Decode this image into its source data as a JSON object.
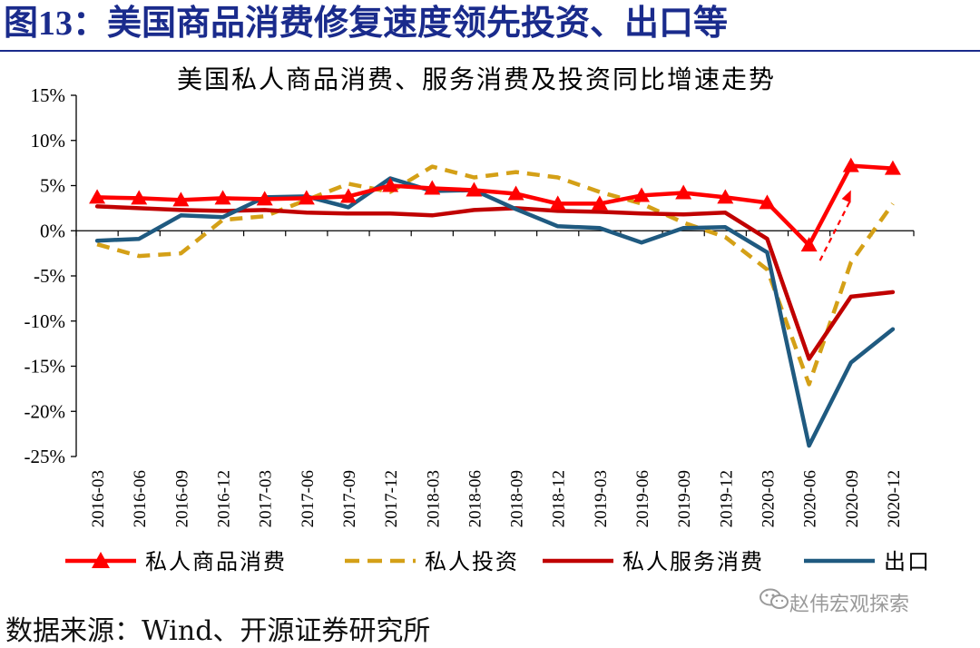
{
  "figure": {
    "label": "图13",
    "sep": "：",
    "heading": "美国商品消费修复速度领先投资、出口等"
  },
  "chart_data": {
    "type": "line",
    "title": "美国私人商品消费、服务消费及投资同比增速走势",
    "categories": [
      "2016-03",
      "2016-06",
      "2016-09",
      "2016-12",
      "2017-03",
      "2017-06",
      "2017-09",
      "2017-12",
      "2018-03",
      "2018-06",
      "2018-09",
      "2018-12",
      "2019-03",
      "2019-06",
      "2019-09",
      "2019-12",
      "2020-03",
      "2020-06",
      "2020-09",
      "2020-12"
    ],
    "ylim": [
      -25,
      15
    ],
    "yticks": [
      -25,
      -20,
      -15,
      -10,
      -5,
      0,
      5,
      10,
      15
    ],
    "ytick_labels": [
      "-25%",
      "-20%",
      "-15%",
      "-10%",
      "-5%",
      "0%",
      "5%",
      "10%",
      "15%"
    ],
    "series": [
      {
        "name": "私人商品消费",
        "color": "#ff0000",
        "style": "solid-triangle",
        "values": [
          3.7,
          3.6,
          3.4,
          3.6,
          3.5,
          3.6,
          3.8,
          5.0,
          4.7,
          4.5,
          4.1,
          3.0,
          3.0,
          3.9,
          4.2,
          3.7,
          3.1,
          -1.6,
          7.2,
          6.9
        ]
      },
      {
        "name": "私人投资",
        "color": "#d4a017",
        "style": "dashed",
        "values": [
          -1.5,
          -2.8,
          -2.5,
          1.2,
          1.6,
          3.4,
          5.2,
          4.3,
          7.1,
          5.9,
          6.5,
          5.9,
          4.3,
          3.0,
          0.9,
          -0.7,
          -4.3,
          -17.0,
          -3.5,
          3.0
        ]
      },
      {
        "name": "私人服务消费",
        "color": "#c00000",
        "style": "solid",
        "values": [
          2.7,
          2.5,
          2.3,
          2.2,
          2.3,
          2.0,
          1.9,
          1.9,
          1.7,
          2.3,
          2.5,
          2.2,
          2.1,
          1.9,
          1.8,
          2.0,
          -0.9,
          -14.2,
          -7.3,
          -6.8
        ]
      },
      {
        "name": "出口",
        "color": "#1f5a80",
        "style": "solid",
        "values": [
          -1.1,
          -0.9,
          1.7,
          1.5,
          3.7,
          3.8,
          2.6,
          5.8,
          4.4,
          4.5,
          2.4,
          0.5,
          0.3,
          -1.3,
          0.3,
          0.4,
          -2.4,
          -23.8,
          -14.6,
          -10.9
        ]
      }
    ],
    "annotation": {
      "type": "dashed-arrow",
      "color": "#ff0000",
      "from": [
        17,
        -3.3
      ],
      "to": [
        18,
        4.5
      ]
    }
  },
  "source_text": "数据来源：Wind、开源证券研究所",
  "watermark_text": "赵伟宏观探索"
}
